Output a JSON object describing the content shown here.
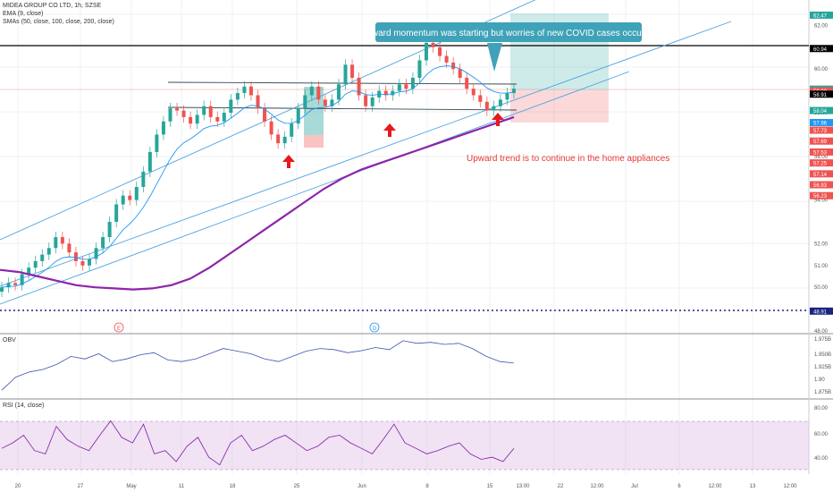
{
  "chart_data": {
    "type": "line",
    "title": "MIDEA GROUP CO LTD, 1h, SZSE",
    "indicators": [
      "EMA (9, close)",
      "SMAs (50, close, 100, close, 200, close)"
    ],
    "x_ticks": [
      "20",
      "27",
      "May",
      "11",
      "18",
      "25",
      "Jun",
      "8",
      "15",
      "13:00",
      "22",
      "12:00",
      "Jul",
      "6",
      "12:00",
      "13",
      "12:00"
    ],
    "y_ticks": [
      "62.00",
      "60.00",
      "58.00",
      "56.00",
      "54.00",
      "52.00",
      "51.00",
      "50.00",
      "48.00"
    ],
    "ylim": [
      48.0,
      63.0
    ],
    "price_tags": [
      {
        "label": "62.47",
        "value": 62.47,
        "color": "#26a69a"
      },
      {
        "label": "60.94",
        "value": 60.94,
        "color": "#000000"
      },
      {
        "label": "59.08",
        "value": 59.08,
        "color": "#26a69a"
      },
      {
        "label": "59.00",
        "value": 59.0,
        "color": "#ef5350"
      },
      {
        "label": "58.91",
        "value": 58.85,
        "color": "#000000"
      },
      {
        "label": "58.04",
        "value": 58.1,
        "color": "#26a69a"
      },
      {
        "label": "57.96",
        "value": 57.55,
        "color": "#2196f3"
      },
      {
        "label": "57.73",
        "value": 57.2,
        "color": "#ef5350"
      },
      {
        "label": "57.69",
        "value": 56.7,
        "color": "#ef5350"
      },
      {
        "label": "57.53",
        "value": 56.2,
        "color": "#ef5350"
      },
      {
        "label": "57.25",
        "value": 55.7,
        "color": "#ef5350"
      },
      {
        "label": "57.14",
        "value": 55.2,
        "color": "#ef5350"
      },
      {
        "label": "56.93",
        "value": 54.7,
        "color": "#ef5350"
      },
      {
        "label": "56.23",
        "value": 54.2,
        "color": "#ef5350"
      },
      {
        "label": "48.91",
        "value": 48.91,
        "color": "#1a237e"
      }
    ],
    "annotations": [
      "Upward momentum was starting but worries of new COVID cases occured.",
      "Upward trend is to continue in the home appliances"
    ],
    "event_markers": [
      "E",
      "D"
    ],
    "sub_panels": [
      {
        "name": "OBV",
        "ticks": [
          "1.975B",
          "1.950B",
          "1.925B",
          "1.90",
          "1.875B"
        ]
      },
      {
        "name": "RSI (14, close)",
        "ticks": [
          "80.00",
          "60.00",
          "40.00"
        ],
        "band": [
          30,
          70
        ]
      }
    ],
    "close_series": [
      50.0,
      50.2,
      50.1,
      50.6,
      50.9,
      51.2,
      51.5,
      51.8,
      52.3,
      52.0,
      51.6,
      51.2,
      51.0,
      51.3,
      51.8,
      52.3,
      53.0,
      53.8,
      54.2,
      54.0,
      54.6,
      55.3,
      56.2,
      57.0,
      57.6,
      58.2,
      58.1,
      57.8,
      57.5,
      57.9,
      58.3,
      57.8,
      57.6,
      58.0,
      58.6,
      58.9,
      59.2,
      58.8,
      58.2,
      57.6,
      57.0,
      56.6,
      56.9,
      57.5,
      58.2,
      58.8,
      59.2,
      58.6,
      58.3,
      58.6,
      59.3,
      60.2,
      59.6,
      58.8,
      58.3,
      58.7,
      59.0,
      58.8,
      59.0,
      59.3,
      59.1,
      59.6,
      60.4,
      61.2,
      61.0,
      60.6,
      60.3,
      60.0,
      59.6,
      59.1,
      58.8,
      58.5,
      58.1,
      58.3,
      58.6,
      58.9,
      59.1
    ],
    "sma200_series": [
      50.8,
      50.7,
      50.5,
      50.3,
      50.1,
      50.0,
      49.95,
      49.9,
      49.95,
      50.1,
      50.4,
      50.9,
      51.5,
      52.1,
      52.7,
      53.3,
      53.9,
      54.5,
      55.0,
      55.4,
      55.7,
      56.0,
      56.3,
      56.6,
      56.9,
      57.2,
      57.5,
      57.8
    ],
    "obv_series": [
      1.88,
      1.905,
      1.915,
      1.92,
      1.93,
      1.945,
      1.94,
      1.95,
      1.935,
      1.94,
      1.948,
      1.952,
      1.938,
      1.935,
      1.94,
      1.95,
      1.96,
      1.955,
      1.95,
      1.94,
      1.935,
      1.945,
      1.955,
      1.96,
      1.958,
      1.952,
      1.956,
      1.962,
      1.958,
      1.975,
      1.97,
      1.972,
      1.968,
      1.97,
      1.96,
      1.945,
      1.935,
      1.932
    ],
    "rsi_series": [
      50,
      55,
      62,
      48,
      45,
      70,
      58,
      52,
      48,
      62,
      75,
      60,
      55,
      72,
      45,
      48,
      38,
      52,
      60,
      42,
      35,
      55,
      62,
      48,
      52,
      58,
      62,
      55,
      48,
      52,
      60,
      62,
      55,
      50,
      45,
      58,
      72,
      55,
      50,
      45,
      48,
      52,
      55,
      45,
      40,
      42,
      38,
      50
    ]
  }
}
